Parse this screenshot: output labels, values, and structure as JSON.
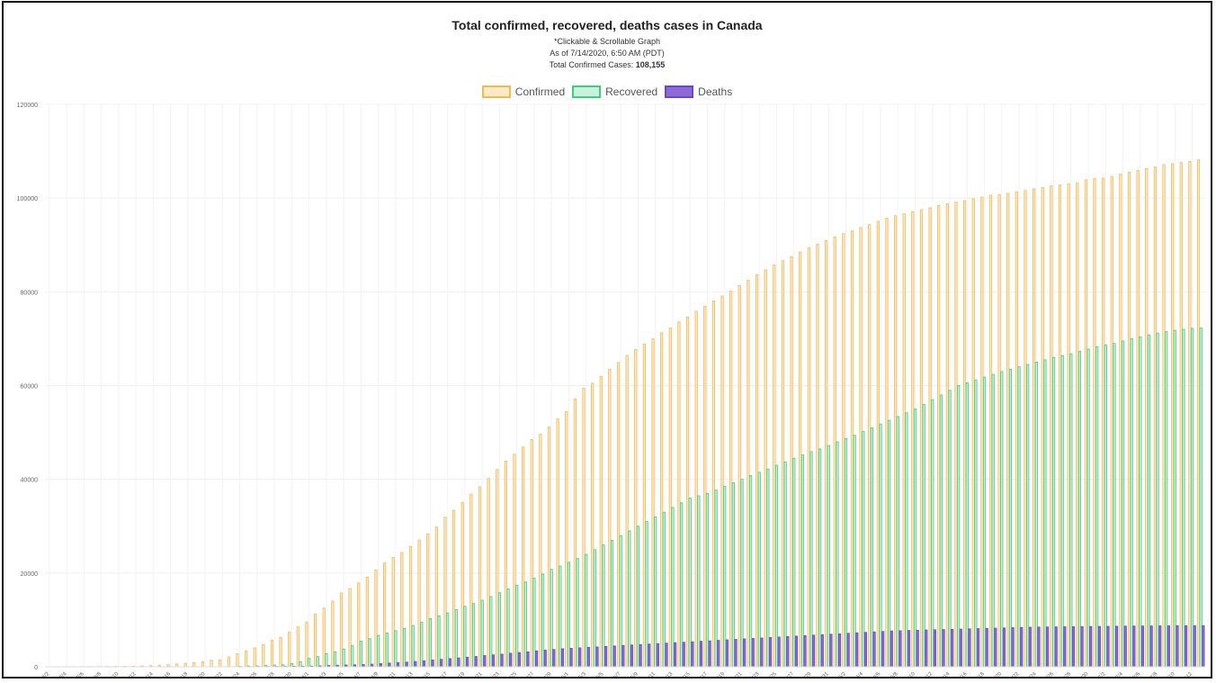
{
  "chart_data": {
    "type": "bar",
    "title": "Total confirmed, recovered, deaths cases in Canada",
    "subtitles": [
      "*Clickable & Scrollable Graph",
      "As of 7/14/2020, 6:50 AM (PDT)"
    ],
    "total_label": "Total Confirmed Cases:",
    "total_value": "108,155",
    "ylim": [
      0,
      120000
    ],
    "y_ticks": [
      "0",
      "20000",
      "40000",
      "60000",
      "80000",
      "100000",
      "120000"
    ],
    "grid": true,
    "legend_position": "top-center",
    "x_tick_labels": [
      "3/2",
      "3/4",
      "3/6",
      "3/8",
      "3/10",
      "3/12",
      "3/14",
      "3/16",
      "3/18",
      "3/20",
      "3/22",
      "3/24",
      "3/26",
      "3/28",
      "3/30",
      "4/1",
      "4/3",
      "4/5",
      "4/7",
      "4/9",
      "4/11",
      "4/13",
      "4/15",
      "4/17",
      "4/19",
      "4/21",
      "4/23",
      "4/25",
      "4/27",
      "4/29",
      "5/1",
      "5/3",
      "5/5",
      "5/7",
      "5/9",
      "5/11",
      "5/13",
      "5/15",
      "5/17",
      "5/19",
      "5/21",
      "5/23",
      "5/25",
      "5/27",
      "5/29",
      "5/31",
      "6/2",
      "6/4",
      "6/6",
      "6/8",
      "6/10",
      "6/12",
      "6/14",
      "6/16",
      "6/18",
      "6/20",
      "6/22",
      "6/24",
      "6/26",
      "6/28",
      "6/30",
      "7/2",
      "7/4",
      "7/6",
      "7/8",
      "7/10",
      "7/12"
    ],
    "categories": [
      "3/2",
      "3/3",
      "3/4",
      "3/5",
      "3/6",
      "3/7",
      "3/8",
      "3/9",
      "3/10",
      "3/11",
      "3/12",
      "3/13",
      "3/14",
      "3/15",
      "3/16",
      "3/17",
      "3/18",
      "3/19",
      "3/20",
      "3/21",
      "3/22",
      "3/23",
      "3/24",
      "3/25",
      "3/26",
      "3/27",
      "3/28",
      "3/29",
      "3/30",
      "3/31",
      "4/1",
      "4/2",
      "4/3",
      "4/4",
      "4/5",
      "4/6",
      "4/7",
      "4/8",
      "4/9",
      "4/10",
      "4/11",
      "4/12",
      "4/13",
      "4/14",
      "4/15",
      "4/16",
      "4/17",
      "4/18",
      "4/19",
      "4/20",
      "4/21",
      "4/22",
      "4/23",
      "4/24",
      "4/25",
      "4/26",
      "4/27",
      "4/28",
      "4/29",
      "4/30",
      "5/1",
      "5/2",
      "5/3",
      "5/4",
      "5/5",
      "5/6",
      "5/7",
      "5/8",
      "5/9",
      "5/10",
      "5/11",
      "5/12",
      "5/13",
      "5/14",
      "5/15",
      "5/16",
      "5/17",
      "5/18",
      "5/19",
      "5/20",
      "5/21",
      "5/22",
      "5/23",
      "5/24",
      "5/25",
      "5/26",
      "5/27",
      "5/28",
      "5/29",
      "5/30",
      "5/31",
      "6/1",
      "6/2",
      "6/3",
      "6/4",
      "6/5",
      "6/6",
      "6/7",
      "6/8",
      "6/9",
      "6/10",
      "6/11",
      "6/12",
      "6/13",
      "6/14",
      "6/15",
      "6/16",
      "6/17",
      "6/18",
      "6/19",
      "6/20",
      "6/21",
      "6/22",
      "6/23",
      "6/24",
      "6/25",
      "6/26",
      "6/27",
      "6/28",
      "6/29",
      "6/30",
      "7/1",
      "7/2",
      "7/3",
      "7/4",
      "7/5",
      "7/6",
      "7/7",
      "7/8",
      "7/9",
      "7/10",
      "7/11",
      "7/12",
      "7/13"
    ],
    "series": [
      {
        "name": "Confirmed",
        "color": "#f0b95a",
        "fill": "#fde9c4",
        "values": [
          27,
          30,
          33,
          37,
          49,
          57,
          64,
          77,
          93,
          103,
          140,
          198,
          252,
          341,
          441,
          598,
          727,
          873,
          1087,
          1400,
          1475,
          2088,
          2790,
          3409,
          4043,
          4757,
          5655,
          6280,
          7398,
          8527,
          9560,
          11284,
          12519,
          14018,
          15756,
          16667,
          17897,
          19141,
          20654,
          22148,
          23316,
          24383,
          25680,
          27063,
          28364,
          29812,
          31927,
          33383,
          35056,
          36832,
          38422,
          40190,
          42110,
          43888,
          45354,
          46895,
          48500,
          49616,
          51150,
          52865,
          54457,
          57148,
          59474,
          60504,
          61957,
          63496,
          64922,
          66434,
          67702,
          68848,
          69981,
          71264,
          72278,
          73568,
          74613,
          75864,
          76944,
          78072,
          79101,
          80142,
          81324,
          82480,
          83621,
          84699,
          85711,
          86647,
          87519,
          88512,
          89418,
          90179,
          90909,
          91705,
          92410,
          93085,
          93726,
          94335,
          95057,
          95699,
          96244,
          96653,
          97125,
          97530,
          97943,
          98399,
          98787,
          99147,
          99467,
          99853,
          100220,
          100629,
          100763,
          101019,
          101337,
          101637,
          101963,
          102242,
          102622,
          102794,
          103032,
          103250,
          103918,
          104204,
          104271,
          104629,
          105091,
          105536,
          105935,
          106288,
          106643,
          107125,
          107346,
          107590,
          107815,
          108155
        ]
      },
      {
        "name": "Recovered",
        "color": "#44c982",
        "fill": "#c8f1d9",
        "values": [
          8,
          8,
          8,
          8,
          8,
          8,
          8,
          8,
          8,
          8,
          8,
          8,
          8,
          8,
          9,
          9,
          9,
          10,
          10,
          10,
          10,
          10,
          112,
          176,
          184,
          300,
          380,
          430,
          700,
          1100,
          1800,
          2200,
          2800,
          3200,
          3800,
          4500,
          5500,
          6000,
          6700,
          7200,
          7700,
          8200,
          8800,
          9500,
          10300,
          10900,
          11500,
          12200,
          12900,
          13500,
          14200,
          15000,
          15800,
          16600,
          17400,
          18100,
          18900,
          19800,
          20800,
          21500,
          22300,
          23100,
          24000,
          25000,
          26000,
          27000,
          28000,
          29000,
          30000,
          31000,
          32000,
          33000,
          34000,
          35000,
          36000,
          36500,
          37000,
          37700,
          38500,
          39300,
          40000,
          40800,
          41500,
          42200,
          43000,
          43700,
          44500,
          45200,
          45900,
          46500,
          47200,
          48000,
          48700,
          49400,
          50200,
          51000,
          51800,
          52600,
          53400,
          54200,
          55000,
          56000,
          57000,
          58000,
          59000,
          60000,
          60600,
          61200,
          61800,
          62400,
          63000,
          63500,
          64000,
          64500,
          65000,
          65500,
          66000,
          66400,
          66800,
          67300,
          67800,
          68300,
          68700,
          69000,
          69500,
          70000,
          70400,
          70800,
          71200,
          71500,
          71800,
          72000,
          72200,
          72300
        ]
      },
      {
        "name": "Deaths",
        "color": "#6a47c6",
        "fill": "#8e6ad8",
        "values": [
          0,
          0,
          0,
          0,
          0,
          0,
          0,
          0,
          0,
          1,
          1,
          1,
          1,
          1,
          4,
          5,
          8,
          9,
          12,
          13,
          19,
          24,
          26,
          35,
          40,
          55,
          64,
          80,
          110,
          130,
          150,
          200,
          260,
          330,
          380,
          420,
          480,
          560,
          700,
          800,
          900,
          1000,
          1150,
          1300,
          1450,
          1600,
          1750,
          1900,
          2050,
          2200,
          2400,
          2550,
          2700,
          2900,
          3050,
          3200,
          3400,
          3550,
          3700,
          3850,
          3950,
          4050,
          4150,
          4250,
          4350,
          4450,
          4550,
          4650,
          4750,
          4850,
          4950,
          5050,
          5150,
          5250,
          5350,
          5450,
          5550,
          5650,
          5750,
          5850,
          5950,
          6050,
          6150,
          6250,
          6350,
          6450,
          6550,
          6650,
          6750,
          6850,
          6950,
          7050,
          7150,
          7250,
          7350,
          7450,
          7550,
          7650,
          7700,
          7750,
          7800,
          7850,
          7900,
          7950,
          8000,
          8050,
          8100,
          8150,
          8200,
          8250,
          8300,
          8350,
          8400,
          8450,
          8480,
          8500,
          8520,
          8540,
          8560,
          8580,
          8600,
          8620,
          8640,
          8660,
          8680,
          8700,
          8710,
          8720,
          8730,
          8740,
          8750,
          8760,
          8770,
          8783
        ]
      }
    ]
  }
}
